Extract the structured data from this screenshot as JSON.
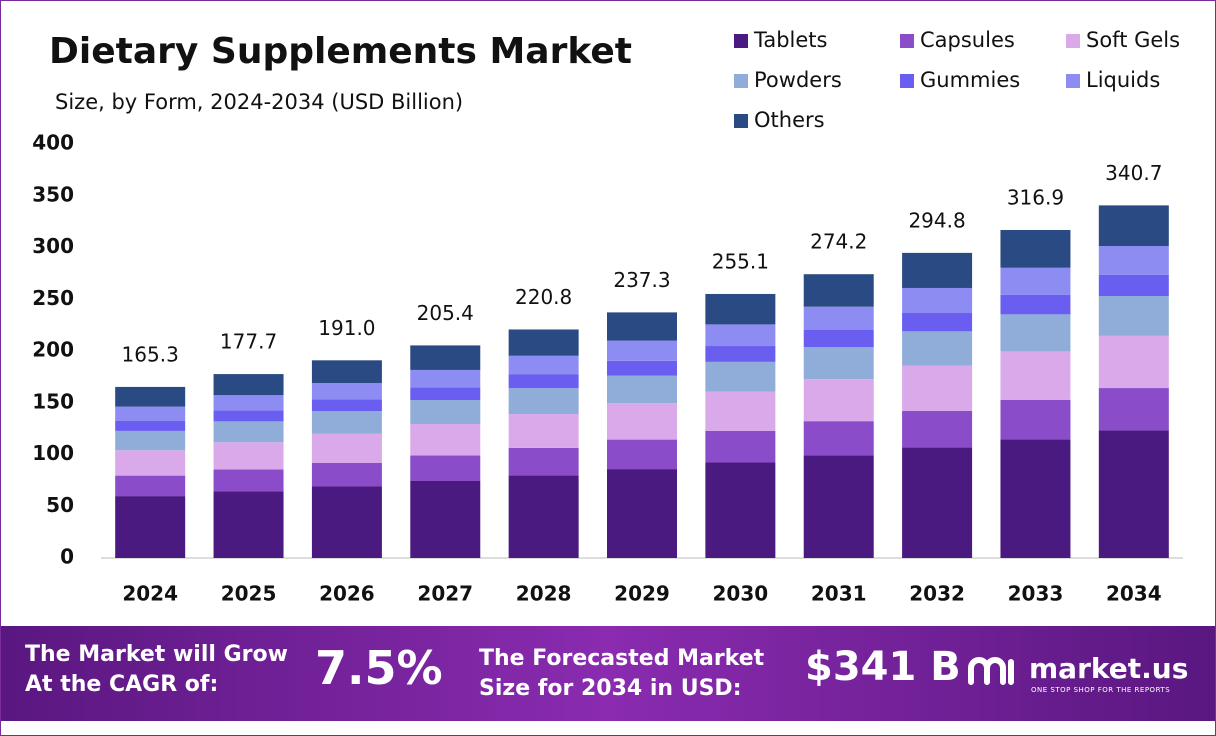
{
  "chart_data": {
    "type": "stacked-bar",
    "title": "Dietary Supplements Market",
    "subtitle": "Size, by Form, 2024-2034 (USD Billion)",
    "categories": [
      "2024",
      "2025",
      "2026",
      "2027",
      "2028",
      "2029",
      "2030",
      "2031",
      "2032",
      "2033",
      "2034"
    ],
    "series": [
      {
        "name": "Tablets",
        "color": "#4b1a80",
        "values": [
          59.8,
          64.3,
          69.1,
          74.4,
          79.9,
          85.9,
          92.3,
          99.3,
          106.7,
          114.7,
          123.3
        ]
      },
      {
        "name": "Capsules",
        "color": "#8b4cc9",
        "values": [
          19.8,
          21.3,
          22.9,
          24.6,
          26.5,
          28.5,
          30.6,
          32.9,
          35.4,
          38.0,
          40.9
        ]
      },
      {
        "name": "Soft Gels",
        "color": "#d9a9ea",
        "values": [
          24.5,
          26.3,
          28.3,
          30.4,
          32.7,
          35.1,
          37.8,
          40.6,
          43.6,
          46.9,
          50.4
        ]
      },
      {
        "name": "Powders",
        "color": "#8fadd8",
        "values": [
          18.7,
          20.1,
          21.6,
          23.2,
          25.0,
          26.8,
          28.8,
          31.0,
          33.3,
          35.8,
          38.5
        ]
      },
      {
        "name": "Gummies",
        "color": "#6a5ef0",
        "values": [
          9.9,
          10.7,
          11.5,
          12.3,
          13.2,
          14.2,
          15.3,
          16.5,
          17.7,
          19.0,
          20.4
        ]
      },
      {
        "name": "Liquids",
        "color": "#8d8cf3",
        "values": [
          13.6,
          14.6,
          15.7,
          16.8,
          18.1,
          19.5,
          20.9,
          22.5,
          24.2,
          26.0,
          27.9
        ]
      },
      {
        "name": "Others",
        "color": "#2a4a84",
        "values": [
          19.0,
          20.4,
          21.9,
          23.7,
          25.4,
          27.3,
          29.4,
          31.4,
          33.9,
          36.5,
          39.3
        ]
      }
    ],
    "totals": [
      165.3,
      177.7,
      191.0,
      205.4,
      220.8,
      237.3,
      255.1,
      274.2,
      294.8,
      316.9,
      340.7
    ],
    "value_labels": [
      "165.3",
      "177.7",
      "191.0",
      "205.4",
      "220.8",
      "237.3",
      "255.1",
      "274.2",
      "294.8",
      "316.9",
      "340.7"
    ],
    "ylim": [
      0,
      400
    ],
    "yticks": [
      0,
      50,
      100,
      150,
      200,
      250,
      300,
      350,
      400
    ],
    "grid": false
  },
  "footer": {
    "cagr_text": [
      "The Market will Grow",
      "At the CAGR of:"
    ],
    "cagr": "7.5%",
    "forecast_text": [
      "The Forecasted Market",
      "Size for 2034 in USD:"
    ],
    "forecast": "$341 B",
    "brand": "market.us",
    "tagline": "ONE STOP SHOP FOR THE REPORTS"
  }
}
